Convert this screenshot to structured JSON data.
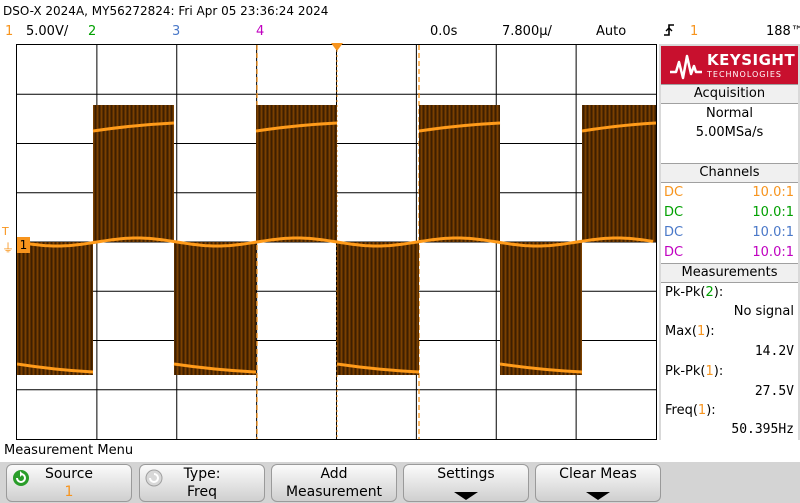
{
  "title": "DSO-X 2024A, MY56272824: Fri Apr 05 23:36:24 2024",
  "status": {
    "ch1_num": "1",
    "ch1_scale": "5.00V/",
    "ch2_num": "2",
    "ch3_num": "3",
    "ch4_num": "4",
    "time_delay": "0.0s",
    "time_scale": "7.800µ/",
    "trigger_mode": "Auto",
    "trigger_num": "1",
    "trigger_level": "188™"
  },
  "colors": {
    "ch1": "#f7941d",
    "ch2": "#00a000",
    "ch3": "#4a78c8",
    "ch4": "#c000c0",
    "trace_dark": "#5a2e00",
    "trace_bright": "#ff9b1a",
    "logo_red": "#c8102e"
  },
  "logo": {
    "line1": "KEYSIGHT",
    "line2": "TECHNOLOGIES"
  },
  "acquisition": {
    "header": "Acquisition",
    "mode": "Normal",
    "rate": "5.00MSa/s"
  },
  "channels": {
    "header": "Channels",
    "rows": [
      {
        "coupling": "DC",
        "probe": "10.0:1"
      },
      {
        "coupling": "DC",
        "probe": "10.0:1"
      },
      {
        "coupling": "DC",
        "probe": "10.0:1"
      },
      {
        "coupling": "DC",
        "probe": "10.0:1"
      }
    ]
  },
  "measurements": {
    "header": "Measurements",
    "items": [
      {
        "label": "Pk-Pk(",
        "src": "2",
        "close": "):",
        "value": "No signal"
      },
      {
        "label": "Max(",
        "src": "1",
        "close": "):",
        "value": "14.2V"
      },
      {
        "label": "Pk-Pk(",
        "src": "1",
        "close": "):",
        "value": "27.5V"
      },
      {
        "label": "Freq(",
        "src": "1",
        "close": "):",
        "value": "50.395Hz"
      }
    ]
  },
  "markers": {
    "ground_label": "1"
  },
  "menu": {
    "title": "Measurement Menu",
    "softkeys": [
      {
        "line1": "Source",
        "line2": "1"
      },
      {
        "line1": "Type:",
        "line2": "Freq"
      },
      {
        "line1": "Add",
        "line2": "Measurement"
      },
      {
        "line1": "Settings",
        "line2": ""
      },
      {
        "line1": "Clear Meas",
        "line2": ""
      }
    ]
  }
}
